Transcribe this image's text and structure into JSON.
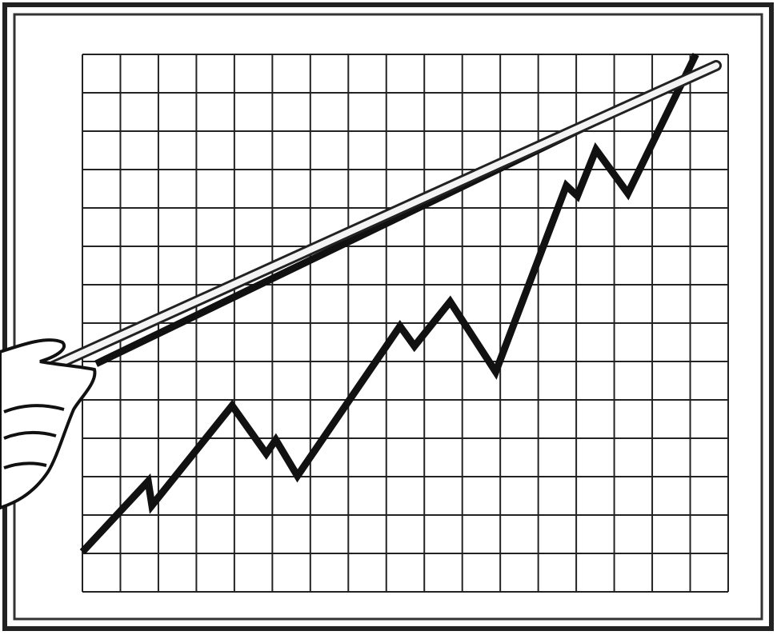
{
  "chart_data": {
    "type": "line",
    "x": [
      0,
      1.73,
      1.83,
      3.94,
      4.84,
      5.09,
      5.66,
      8.36,
      8.74,
      9.68,
      10.88,
      12.74,
      13.03,
      13.52,
      14.36,
      16.15
    ],
    "series": [
      {
        "color": "#111111",
        "values": [
          1.04,
          2.88,
          2.25,
          4.85,
          3.6,
          3.96,
          3.02,
          6.92,
          6.4,
          7.56,
          5.73,
          10.58,
          10.31,
          11.52,
          10.38,
          14.0
        ]
      }
    ],
    "trend": {
      "color": "#111111",
      "x": [
        0.36,
        16.68
      ],
      "values": [
        5.94,
        13.75
      ]
    },
    "xlim": [
      0,
      17
    ],
    "ylim": [
      0,
      14
    ],
    "xticks": [
      0,
      1,
      2,
      3,
      4,
      5,
      6,
      7,
      8,
      9,
      10,
      11,
      12,
      13,
      14,
      15,
      16,
      17
    ],
    "yticks": [
      0,
      1,
      2,
      3,
      4,
      5,
      6,
      7,
      8,
      9,
      10,
      11,
      12,
      13,
      14
    ],
    "grid": true
  }
}
